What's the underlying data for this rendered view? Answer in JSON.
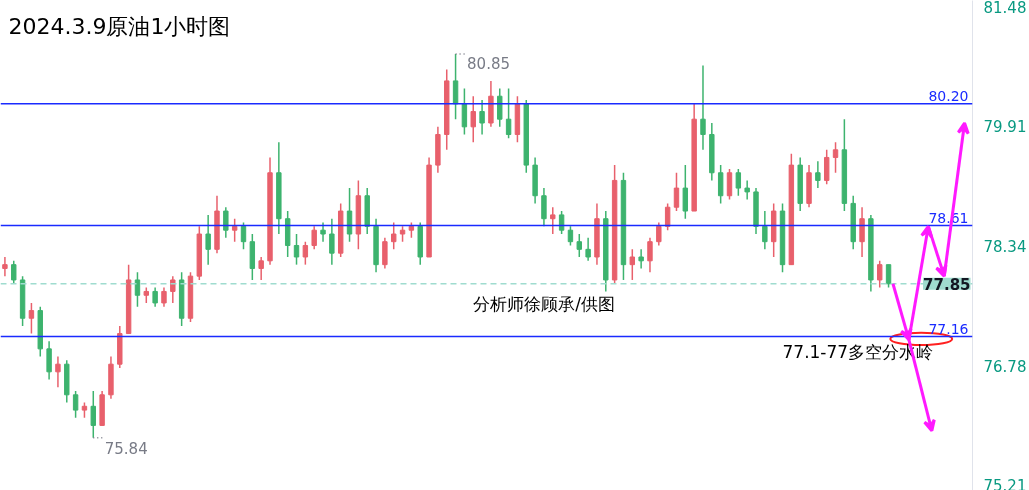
{
  "chart_data": {
    "type": "candlestick",
    "title": "2024.3.9原油1小时图",
    "categories": [
      null,
      null,
      null,
      null,
      null,
      null,
      null,
      null,
      null,
      null,
      null,
      null,
      null,
      null,
      null,
      null,
      null,
      null,
      null,
      null,
      null,
      null,
      null,
      null,
      null,
      null,
      null,
      null,
      null,
      null,
      null,
      null,
      null,
      null,
      null,
      null,
      null,
      null,
      null,
      null,
      null,
      null,
      null,
      null,
      null,
      null,
      null,
      null,
      null,
      null,
      null,
      null,
      null,
      null,
      null,
      null,
      null,
      null,
      null,
      null,
      null,
      null,
      null,
      null,
      null,
      null,
      null,
      null,
      null,
      null,
      null,
      null,
      null,
      null,
      null,
      null,
      null,
      null,
      null,
      null,
      null,
      null,
      null,
      null,
      null,
      null,
      null,
      null,
      null,
      null,
      null,
      null,
      null,
      null,
      null,
      null,
      null,
      null,
      null,
      null,
      null,
      null,
      null,
      null,
      null,
      null,
      null,
      null,
      null,
      null
    ],
    "ohlc": [
      [
        78.05,
        78.2,
        77.95,
        78.1
      ],
      [
        78.1,
        78.15,
        77.85,
        77.9
      ],
      [
        77.9,
        77.95,
        77.3,
        77.4
      ],
      [
        77.4,
        77.6,
        77.2,
        77.5
      ],
      [
        77.5,
        77.55,
        76.9,
        77.0
      ],
      [
        77.0,
        77.1,
        76.6,
        76.7
      ],
      [
        76.7,
        76.9,
        76.5,
        76.8
      ],
      [
        76.8,
        76.85,
        76.3,
        76.4
      ],
      [
        76.4,
        76.45,
        76.1,
        76.2
      ],
      [
        76.2,
        76.3,
        76.1,
        76.25
      ],
      [
        76.25,
        76.45,
        75.84,
        76.0
      ],
      [
        76.0,
        76.45,
        76.0,
        76.4
      ],
      [
        76.4,
        76.9,
        76.35,
        76.8
      ],
      [
        76.8,
        77.3,
        76.75,
        77.2
      ],
      [
        77.2,
        78.1,
        77.2,
        77.9
      ],
      [
        77.9,
        78.0,
        77.55,
        77.7
      ],
      [
        77.7,
        77.8,
        77.6,
        77.75
      ],
      [
        77.75,
        77.8,
        77.55,
        77.6
      ],
      [
        77.6,
        77.8,
        77.55,
        77.75
      ],
      [
        77.75,
        77.95,
        77.6,
        77.9
      ],
      [
        77.9,
        78.0,
        77.3,
        77.4
      ],
      [
        77.4,
        78.0,
        77.35,
        77.95
      ],
      [
        77.95,
        78.6,
        77.9,
        78.5
      ],
      [
        78.5,
        78.75,
        78.1,
        78.3
      ],
      [
        78.3,
        79.0,
        78.25,
        78.8
      ],
      [
        78.8,
        78.85,
        78.45,
        78.55
      ],
      [
        78.55,
        78.7,
        78.4,
        78.6
      ],
      [
        78.6,
        78.65,
        78.3,
        78.4
      ],
      [
        78.4,
        78.5,
        77.9,
        78.05
      ],
      [
        78.05,
        78.2,
        77.9,
        78.15
      ],
      [
        78.15,
        79.5,
        78.1,
        79.3
      ],
      [
        79.3,
        79.7,
        78.5,
        78.7
      ],
      [
        78.7,
        78.8,
        78.2,
        78.35
      ],
      [
        78.35,
        78.5,
        78.1,
        78.2
      ],
      [
        78.2,
        78.4,
        78.1,
        78.35
      ],
      [
        78.35,
        78.6,
        78.3,
        78.55
      ],
      [
        78.55,
        78.65,
        78.4,
        78.5
      ],
      [
        78.5,
        78.7,
        78.1,
        78.25
      ],
      [
        78.25,
        78.9,
        78.2,
        78.8
      ],
      [
        78.8,
        79.1,
        78.4,
        78.5
      ],
      [
        78.5,
        79.2,
        78.3,
        79.0
      ],
      [
        79.0,
        79.1,
        78.5,
        78.6
      ],
      [
        78.6,
        78.7,
        78.0,
        78.1
      ],
      [
        78.1,
        78.45,
        78.05,
        78.4
      ],
      [
        78.4,
        78.65,
        78.3,
        78.5
      ],
      [
        78.5,
        78.6,
        78.4,
        78.55
      ],
      [
        78.55,
        78.65,
        78.45,
        78.6
      ],
      [
        78.6,
        78.65,
        78.1,
        78.2
      ],
      [
        78.2,
        79.5,
        78.2,
        79.4
      ],
      [
        79.4,
        79.9,
        79.3,
        79.8
      ],
      [
        79.8,
        80.65,
        79.6,
        80.5
      ],
      [
        80.5,
        80.85,
        80.0,
        80.2
      ],
      [
        80.2,
        80.4,
        79.8,
        79.9
      ],
      [
        79.9,
        80.3,
        79.7,
        80.1
      ],
      [
        80.1,
        80.25,
        79.8,
        79.95
      ],
      [
        79.95,
        80.5,
        79.9,
        80.3
      ],
      [
        80.3,
        80.4,
        79.9,
        80.0
      ],
      [
        80.0,
        80.4,
        79.75,
        79.8
      ],
      [
        79.8,
        80.3,
        79.7,
        80.2
      ],
      [
        80.2,
        80.25,
        79.3,
        79.4
      ],
      [
        79.4,
        79.5,
        78.9,
        79.0
      ],
      [
        79.0,
        79.1,
        78.6,
        78.7
      ],
      [
        78.7,
        78.85,
        78.5,
        78.75
      ],
      [
        78.75,
        78.8,
        78.5,
        78.55
      ],
      [
        78.55,
        78.6,
        78.35,
        78.4
      ],
      [
        78.4,
        78.5,
        78.2,
        78.3
      ],
      [
        78.3,
        78.45,
        78.15,
        78.2
      ],
      [
        78.2,
        78.9,
        78.1,
        78.7
      ],
      [
        78.7,
        78.8,
        77.75,
        77.9
      ],
      [
        77.9,
        79.4,
        77.85,
        79.2
      ],
      [
        79.2,
        79.3,
        77.9,
        78.1
      ],
      [
        78.1,
        78.3,
        77.9,
        78.2
      ],
      [
        78.2,
        78.3,
        78.05,
        78.15
      ],
      [
        78.15,
        78.45,
        78.0,
        78.4
      ],
      [
        78.4,
        78.65,
        78.35,
        78.6
      ],
      [
        78.6,
        78.9,
        78.55,
        78.85
      ],
      [
        78.85,
        79.3,
        78.8,
        79.1
      ],
      [
        79.1,
        79.4,
        78.7,
        78.8
      ],
      [
        78.8,
        80.2,
        78.8,
        80.0
      ],
      [
        80.0,
        80.7,
        79.6,
        79.8
      ],
      [
        79.8,
        79.95,
        79.2,
        79.3
      ],
      [
        79.3,
        79.4,
        78.9,
        79.0
      ],
      [
        79.0,
        79.35,
        78.95,
        79.3
      ],
      [
        79.3,
        79.35,
        79.0,
        79.1
      ],
      [
        79.1,
        79.2,
        78.95,
        79.05
      ],
      [
        79.05,
        79.1,
        78.5,
        78.6
      ],
      [
        78.6,
        78.8,
        78.3,
        78.4
      ],
      [
        78.4,
        78.9,
        78.2,
        78.8
      ],
      [
        78.8,
        78.9,
        78.0,
        78.1
      ],
      [
        78.1,
        79.55,
        78.1,
        79.4
      ],
      [
        79.4,
        79.5,
        78.8,
        78.9
      ],
      [
        78.9,
        79.4,
        78.85,
        79.3
      ],
      [
        79.3,
        79.45,
        79.1,
        79.2
      ],
      [
        79.2,
        79.6,
        79.15,
        79.5
      ],
      [
        79.5,
        79.7,
        79.3,
        79.6
      ],
      [
        79.6,
        80.0,
        78.8,
        78.9
      ],
      [
        78.9,
        79.0,
        78.3,
        78.4
      ],
      [
        78.4,
        78.85,
        78.2,
        78.7
      ],
      [
        78.7,
        78.75,
        77.75,
        77.9
      ],
      [
        77.9,
        78.15,
        77.8,
        78.1
      ],
      [
        78.1,
        78.1,
        77.8,
        77.85
      ],
      null,
      null,
      null,
      null,
      null,
      null,
      null,
      null,
      null
    ],
    "colors": [
      "#e8606c",
      "#3db36e",
      "#3db36e",
      "#e8606c",
      "#3db36e",
      "#3db36e",
      "#e8606c",
      "#3db36e",
      "#3db36e",
      "#e8606c",
      "#3db36e",
      "#e8606c",
      "#e8606c",
      "#e8606c",
      "#e8606c",
      "#3db36e",
      "#e8606c",
      "#3db36e",
      "#e8606c",
      "#e8606c",
      "#3db36e",
      "#e8606c",
      "#e8606c",
      "#3db36e",
      "#e8606c",
      "#3db36e",
      "#e8606c",
      "#3db36e",
      "#3db36e",
      "#e8606c",
      "#e8606c",
      "#3db36e",
      "#3db36e",
      "#3db36e",
      "#e8606c",
      "#e8606c",
      "#3db36e",
      "#3db36e",
      "#e8606c",
      "#3db36e",
      "#e8606c",
      "#3db36e",
      "#3db36e",
      "#e8606c",
      "#e8606c",
      "#e8606c",
      "#e8606c",
      "#3db36e",
      "#e8606c",
      "#e8606c",
      "#e8606c",
      "#3db36e",
      "#3db36e",
      "#e8606c",
      "#3db36e",
      "#e8606c",
      "#3db36e",
      "#3db36e",
      "#e8606c",
      "#3db36e",
      "#3db36e",
      "#3db36e",
      "#e8606c",
      "#3db36e",
      "#3db36e",
      "#3db36e",
      "#3db36e",
      "#e8606c",
      "#3db36e",
      "#e8606c",
      "#3db36e",
      "#e8606c",
      "#3db36e",
      "#e8606c",
      "#e8606c",
      "#e8606c",
      "#e8606c",
      "#3db36e",
      "#e8606c",
      "#3db36e",
      "#3db36e",
      "#3db36e",
      "#e8606c",
      "#3db36e",
      "#3db36e",
      "#3db36e",
      "#3db36e",
      "#e8606c",
      "#3db36e",
      "#e8606c",
      "#3db36e",
      "#e8606c",
      "#3db36e",
      "#e8606c",
      "#e8606c",
      "#3db36e",
      "#3db36e",
      "#e8606c",
      "#3db36e",
      "#e8606c",
      "#3db36e",
      null,
      null,
      null,
      null,
      null,
      null,
      null,
      null,
      null
    ],
    "ylim": [
      75.15,
      81.55
    ],
    "yticks": [
      75.21,
      76.78,
      78.34,
      79.91,
      81.48
    ],
    "ref_lines": [
      {
        "axis": "y",
        "value": 80.2,
        "label": "80.20",
        "color": "#1a2bff"
      },
      {
        "axis": "y",
        "value": 78.61,
        "label": "78.61",
        "color": "#1a2bff"
      },
      {
        "axis": "y",
        "value": 77.16,
        "label": "77.16",
        "color": "#1a2bff"
      },
      {
        "axis": "y",
        "value": 77.85,
        "label": "77.85",
        "color": "#9fdccf",
        "line_style": "dashed"
      }
    ],
    "annotations": [
      "80.85",
      "75.84",
      "分析师徐顾承/供图",
      "77.1-77多空分水岭"
    ]
  }
}
